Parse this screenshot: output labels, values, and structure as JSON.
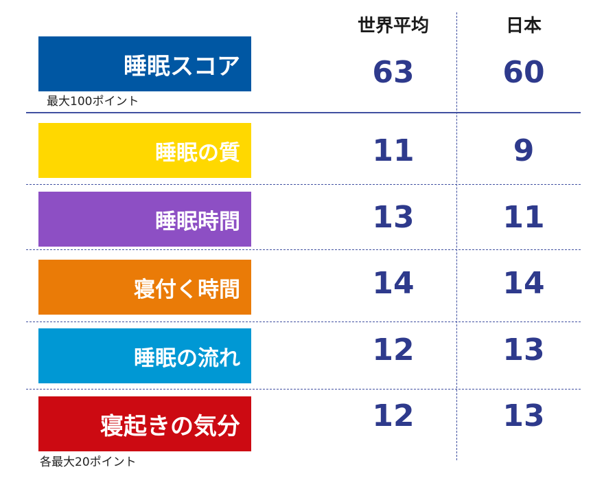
{
  "chart_data": {
    "type": "table",
    "columns": [
      "世界平均",
      "日本"
    ],
    "total": {
      "label": "睡眠スコア",
      "note": "最大100ポイント",
      "color": "#0057a3",
      "world": 63,
      "japan": 60
    },
    "rows": [
      {
        "label": "睡眠の質",
        "color": "#ffd800",
        "world": 11,
        "japan": 9
      },
      {
        "label": "睡眠時間",
        "color": "#8d4fc4",
        "world": 13,
        "japan": 11
      },
      {
        "label": "寝付く時間",
        "color": "#ea7b07",
        "world": 14,
        "japan": 14
      },
      {
        "label": "睡眠の流れ",
        "color": "#0098d4",
        "world": 12,
        "japan": 13
      },
      {
        "label": "寝起きの気分",
        "color": "#cc0a12",
        "world": 12,
        "japan": 13
      }
    ],
    "rows_note": "各最大20ポイント"
  }
}
